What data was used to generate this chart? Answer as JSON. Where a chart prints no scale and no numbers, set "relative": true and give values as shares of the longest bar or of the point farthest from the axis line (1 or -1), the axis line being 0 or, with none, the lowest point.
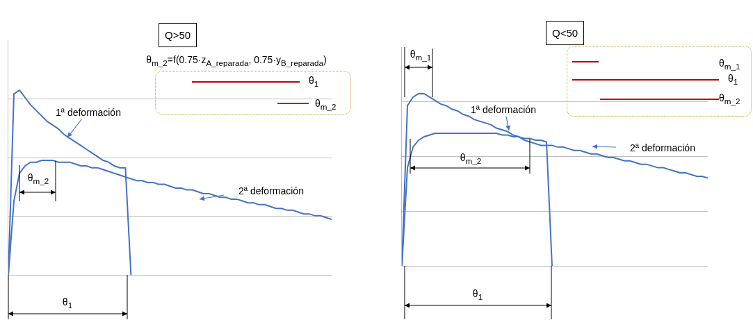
{
  "chart_data": [
    {
      "type": "line",
      "title": "Q>50",
      "relative": true,
      "grid": "y",
      "categories": [
        null,
        null,
        null,
        null,
        null,
        null,
        null,
        null,
        null,
        null,
        null,
        null,
        null,
        null,
        null,
        null,
        null,
        null,
        null,
        null,
        null,
        null,
        null,
        null,
        null,
        null,
        null,
        null,
        null,
        null,
        null,
        null,
        null,
        null,
        null,
        null,
        null,
        null,
        null,
        null,
        null,
        null,
        null,
        null,
        null,
        null,
        null,
        null,
        null,
        null,
        null,
        null,
        null,
        null,
        null,
        null,
        null,
        null,
        null
      ],
      "series": [
        {
          "name": "1ª deformación",
          "color": "#4472c4",
          "values": [
            0,
            0.98,
            1.0,
            0.96,
            0.92,
            0.89,
            0.86,
            0.83,
            0.81,
            0.79,
            0.76,
            0.74,
            0.72,
            0.7,
            0.68,
            0.66,
            0.64,
            0.62,
            0.61,
            0.59,
            0.58,
            0.58,
            0,
            null,
            null,
            null,
            null,
            null,
            null,
            null,
            null,
            null,
            null,
            null,
            null,
            null,
            null,
            null,
            null,
            null,
            null,
            null,
            null,
            null,
            null,
            null,
            null,
            null,
            null,
            null,
            null,
            null,
            null,
            null,
            null,
            null,
            null,
            null,
            null
          ]
        },
        {
          "name": "2ª deformación",
          "color": "#4472c4",
          "values": [
            0,
            0.4,
            0.55,
            0.59,
            0.61,
            0.61,
            0.62,
            0.62,
            0.62,
            0.61,
            0.61,
            0.61,
            0.6,
            0.59,
            0.59,
            0.58,
            0.58,
            0.57,
            0.56,
            0.55,
            0.54,
            0.53,
            0.52,
            0.51,
            0.51,
            0.5,
            0.5,
            0.49,
            0.49,
            0.48,
            0.47,
            0.47,
            0.46,
            0.46,
            0.45,
            0.44,
            0.44,
            0.43,
            0.42,
            0.42,
            0.41,
            0.41,
            0.4,
            0.39,
            0.39,
            0.38,
            0.38,
            0.37,
            0.36,
            0.36,
            0.35,
            0.35,
            0.34,
            0.33,
            0.33,
            0.32,
            0.32,
            0.31,
            0.3
          ]
        }
      ],
      "annotations": [
        "θ$_{m_2}$=f(0.75·z$_{A_reparada}$, 0.75·y$_{B_reparada}$)",
        "θ$_{1}$",
        "θ$_{m_2}$",
        "θ$_{m_2}$",
        "θ$_{1}$"
      ]
    },
    {
      "type": "line",
      "title": "Q<50",
      "relative": true,
      "grid": "y",
      "categories": [
        null,
        null,
        null,
        null,
        null,
        null,
        null,
        null,
        null,
        null,
        null,
        null,
        null,
        null,
        null,
        null,
        null,
        null,
        null,
        null,
        null,
        null,
        null,
        null,
        null,
        null,
        null,
        null,
        null,
        null,
        null,
        null,
        null,
        null,
        null,
        null,
        null,
        null,
        null,
        null,
        null,
        null,
        null,
        null,
        null,
        null,
        null,
        null,
        null,
        null,
        null,
        null,
        null,
        null,
        null,
        null
      ],
      "series": [
        {
          "name": "1ª deformación",
          "color": "#4472c4",
          "values": [
            0,
            0.57,
            0.69,
            0.73,
            0.75,
            0.76,
            0.77,
            0.77,
            0.77,
            0.77,
            0.77,
            0.77,
            0.77,
            0.77,
            0.77,
            0.77,
            0.77,
            0.77,
            0.76,
            0.76,
            0.75,
            0.75,
            0.74,
            0.74,
            0.73,
            0.73,
            0.72,
            0,
            null,
            null,
            null,
            null,
            null,
            null,
            null,
            null,
            null,
            null,
            null,
            null,
            null,
            null,
            null,
            null,
            null,
            null,
            null,
            null,
            null,
            null,
            null,
            null,
            null,
            null,
            null,
            null
          ]
        },
        {
          "name": "2ª deformación",
          "color": "#4472c4",
          "values": [
            0,
            0.93,
            0.98,
            1.0,
            1.0,
            0.98,
            0.96,
            0.94,
            0.93,
            0.91,
            0.9,
            0.88,
            0.87,
            0.85,
            0.84,
            0.83,
            0.82,
            0.8,
            0.79,
            0.78,
            0.76,
            0.75,
            0.73,
            0.72,
            0.71,
            0.7,
            0.7,
            0.7,
            0.69,
            0.69,
            0.68,
            0.67,
            0.67,
            0.66,
            0.65,
            0.65,
            0.64,
            0.63,
            0.63,
            0.62,
            0.61,
            0.61,
            0.6,
            0.59,
            0.59,
            0.58,
            0.57,
            0.57,
            0.56,
            0.55,
            0.54,
            0.54,
            0.53,
            0.52,
            0.52,
            0.51
          ]
        }
      ],
      "annotations": [
        "θ$_{m_1}$",
        "θ$_{1}$",
        "θ$_{m_2}$",
        "θ$_{m_1}$",
        "θ$_{m_2}$",
        "θ$_{1}$"
      ]
    }
  ]
}
